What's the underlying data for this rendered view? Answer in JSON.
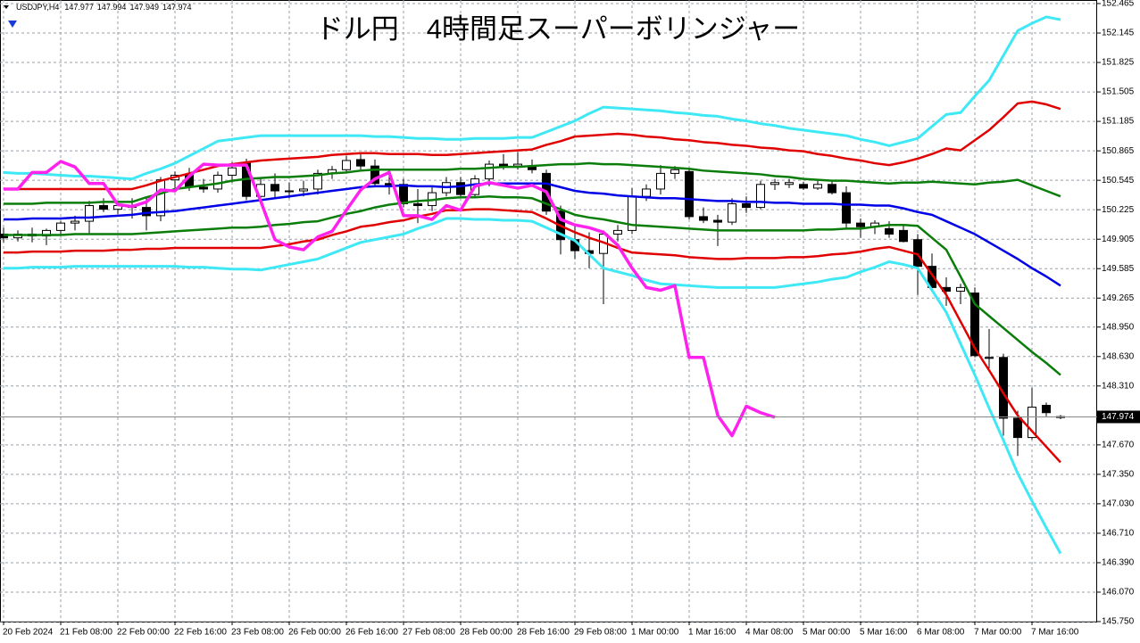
{
  "chart_data": {
    "type": "candlestick",
    "title": "ドル円　4時間足スーパーボリンジャー",
    "symbol": "USDJPY,H4",
    "categories": [
      "20 Feb 2024",
      null,
      null,
      null,
      "21 Feb 08:00",
      null,
      null,
      null,
      "22 Feb 00:00",
      null,
      null,
      null,
      "22 Feb 16:00",
      null,
      null,
      null,
      "23 Feb 08:00",
      null,
      null,
      null,
      "26 Feb 00:00",
      null,
      null,
      null,
      "26 Feb 16:00",
      null,
      null,
      null,
      "27 Feb 08:00",
      null,
      null,
      null,
      "28 Feb 00:00",
      null,
      null,
      null,
      "28 Feb 16:00",
      null,
      null,
      null,
      "29 Feb 08:00",
      null,
      null,
      null,
      "1 Mar 00:00",
      null,
      null,
      null,
      "1 Mar 16:00",
      null,
      null,
      null,
      "4 Mar 08:00",
      null,
      null,
      null,
      "5 Mar 00:00",
      null,
      null,
      null,
      "5 Mar 16:00",
      null,
      null,
      null,
      "6 Mar 08:00",
      null,
      null,
      null,
      "7 Mar 00:00",
      null,
      null,
      null,
      "7 Mar 16:00",
      null,
      null
    ],
    "open": [
      149.96,
      149.92,
      149.96,
      149.94,
      150.0,
      150.08,
      150.1,
      150.27,
      150.23,
      150.27,
      150.25,
      150.16,
      150.55,
      150.6,
      150.47,
      150.45,
      150.6,
      150.74,
      150.37,
      150.5,
      150.43,
      150.43,
      150.45,
      150.62,
      150.66,
      150.77,
      150.7,
      150.51,
      150.5,
      150.29,
      150.27,
      150.41,
      150.52,
      150.39,
      150.56,
      150.72,
      150.7,
      150.7,
      150.62,
      150.21,
      149.9,
      149.78,
      149.75,
      149.96,
      150.0,
      150.37,
      150.45,
      150.62,
      150.64,
      150.15,
      150.11,
      150.09,
      150.29,
      150.25,
      150.5,
      150.5,
      150.5,
      150.46,
      150.5,
      150.41,
      150.08,
      150.04,
      150.02,
      150.0,
      149.9,
      149.61,
      149.38,
      149.34,
      149.32,
      148.62,
      148.62,
      147.96,
      147.75,
      148.1,
      147.977
    ],
    "high": [
      150.03,
      150.0,
      150.03,
      150.02,
      150.1,
      150.16,
      150.32,
      150.35,
      150.31,
      150.35,
      150.37,
      150.58,
      150.64,
      150.68,
      150.56,
      150.64,
      150.74,
      150.78,
      150.58,
      150.62,
      150.52,
      150.54,
      150.66,
      150.7,
      150.81,
      150.83,
      150.77,
      150.66,
      150.56,
      150.45,
      150.47,
      150.58,
      150.58,
      150.6,
      150.76,
      150.83,
      150.85,
      150.77,
      150.66,
      150.27,
      150.06,
      149.98,
      150.0,
      150.06,
      150.46,
      150.5,
      150.71,
      150.7,
      150.68,
      150.25,
      150.17,
      150.35,
      150.37,
      150.54,
      150.56,
      150.56,
      150.53,
      150.54,
      150.54,
      150.48,
      150.13,
      150.11,
      150.1,
      150.06,
      149.96,
      149.75,
      149.49,
      149.42,
      149.38,
      148.93,
      148.66,
      148.04,
      148.29,
      148.13,
      147.994
    ],
    "low": [
      149.87,
      149.88,
      149.87,
      149.84,
      149.96,
      150.0,
      149.96,
      150.2,
      150.18,
      150.13,
      150.0,
      150.1,
      150.45,
      150.43,
      150.41,
      150.41,
      150.52,
      150.33,
      150.35,
      150.35,
      150.35,
      150.37,
      150.39,
      150.56,
      150.62,
      150.66,
      150.47,
      150.39,
      150.25,
      150.08,
      150.21,
      150.37,
      150.35,
      150.35,
      150.48,
      150.66,
      150.66,
      150.62,
      150.17,
      149.74,
      149.69,
      149.59,
      149.2,
      149.88,
      149.96,
      150.32,
      150.39,
      150.56,
      150.12,
      150.08,
      149.83,
      150.06,
      150.19,
      150.23,
      150.44,
      150.46,
      150.44,
      150.44,
      150.39,
      150.02,
      149.92,
      149.96,
      149.92,
      149.87,
      149.3,
      149.34,
      149.18,
      149.2,
      148.62,
      148.5,
      147.77,
      147.55,
      147.73,
      147.98,
      147.949
    ],
    "close": [
      149.92,
      149.96,
      149.94,
      150.0,
      150.08,
      150.1,
      150.27,
      150.23,
      150.27,
      150.25,
      150.16,
      150.55,
      150.6,
      150.47,
      150.45,
      150.6,
      150.68,
      150.37,
      150.5,
      150.43,
      150.43,
      150.45,
      150.62,
      150.66,
      150.76,
      150.7,
      150.51,
      150.48,
      150.29,
      150.27,
      150.41,
      150.52,
      150.39,
      150.56,
      150.72,
      150.7,
      150.72,
      150.66,
      150.21,
      149.9,
      149.78,
      149.75,
      149.96,
      150.0,
      150.37,
      150.45,
      150.62,
      150.66,
      150.15,
      150.11,
      150.09,
      150.29,
      150.25,
      150.5,
      150.52,
      150.52,
      150.46,
      150.5,
      150.41,
      150.08,
      150.04,
      150.08,
      149.96,
      149.88,
      149.61,
      149.38,
      149.34,
      149.38,
      148.64,
      148.62,
      147.96,
      147.75,
      148.08,
      148.02,
      147.974
    ],
    "up_color": "#ffffff",
    "down_color": "#000000",
    "series": [
      {
        "color": "#3ee8f5",
        "width": 3,
        "values": [
          150.63,
          150.62,
          150.62,
          150.61,
          150.6,
          150.59,
          150.59,
          150.58,
          150.57,
          150.56,
          150.62,
          150.67,
          150.73,
          150.81,
          150.89,
          150.97,
          150.99,
          151.01,
          151.03,
          151.03,
          151.03,
          151.03,
          151.03,
          151.03,
          151.03,
          151.03,
          151.02,
          151.02,
          151.01,
          151.0,
          151.0,
          150.99,
          150.99,
          151.0,
          151.0,
          151.0,
          151.01,
          151.01,
          151.07,
          151.13,
          151.19,
          151.27,
          151.34,
          151.33,
          151.32,
          151.31,
          151.3,
          151.28,
          151.27,
          151.25,
          151.24,
          151.21,
          151.19,
          151.16,
          151.14,
          151.11,
          151.09,
          151.07,
          151.05,
          151.03,
          150.99,
          150.96,
          150.92,
          150.96,
          151.0,
          151.13,
          151.26,
          151.28,
          151.46,
          151.63,
          151.9,
          152.17,
          152.25,
          152.32,
          152.29
        ]
      },
      {
        "color": "#3ee8f5",
        "width": 3,
        "values": [
          149.59,
          149.59,
          149.6,
          149.6,
          149.6,
          149.61,
          149.61,
          149.61,
          149.61,
          149.61,
          149.61,
          149.61,
          149.61,
          149.6,
          149.6,
          149.59,
          149.58,
          149.58,
          149.57,
          149.6,
          149.63,
          149.66,
          149.69,
          149.75,
          149.81,
          149.87,
          149.9,
          149.93,
          149.96,
          150.02,
          150.07,
          150.13,
          150.13,
          150.12,
          150.12,
          150.11,
          150.11,
          150.1,
          150.03,
          149.96,
          149.89,
          149.74,
          149.59,
          149.55,
          149.51,
          149.46,
          149.42,
          149.41,
          149.4,
          149.39,
          149.38,
          149.38,
          149.38,
          149.38,
          149.38,
          149.4,
          149.42,
          149.44,
          149.47,
          149.49,
          149.55,
          149.6,
          149.66,
          149.63,
          149.59,
          149.35,
          149.11,
          148.77,
          148.43,
          148.07,
          147.72,
          147.36,
          147.06,
          146.77,
          146.49
        ]
      },
      {
        "color": "#e00000",
        "width": 2.5,
        "values": [
          150.45,
          150.45,
          150.45,
          150.45,
          150.45,
          150.45,
          150.45,
          150.45,
          150.45,
          150.45,
          150.49,
          150.54,
          150.58,
          150.62,
          150.66,
          150.7,
          150.72,
          150.74,
          150.76,
          150.77,
          150.78,
          150.79,
          150.8,
          150.82,
          150.83,
          150.84,
          150.84,
          150.83,
          150.83,
          150.83,
          150.82,
          150.82,
          150.83,
          150.84,
          150.85,
          150.86,
          150.87,
          150.88,
          150.93,
          150.97,
          151.02,
          151.03,
          151.04,
          151.05,
          151.04,
          151.02,
          151.01,
          150.99,
          150.98,
          150.96,
          150.95,
          150.93,
          150.92,
          150.9,
          150.89,
          150.87,
          150.86,
          150.83,
          150.81,
          150.78,
          150.76,
          150.73,
          150.71,
          150.74,
          150.78,
          150.83,
          150.89,
          150.87,
          150.98,
          151.09,
          151.23,
          151.38,
          151.4,
          151.37,
          151.32
        ]
      },
      {
        "color": "#e00000",
        "width": 2.5,
        "values": [
          149.76,
          149.76,
          149.77,
          149.77,
          149.77,
          149.78,
          149.78,
          149.78,
          149.79,
          149.79,
          149.8,
          149.8,
          149.81,
          149.81,
          149.81,
          149.81,
          149.81,
          149.81,
          149.81,
          149.83,
          149.85,
          149.88,
          149.9,
          149.95,
          149.99,
          150.04,
          150.06,
          150.09,
          150.11,
          150.15,
          150.18,
          150.22,
          150.22,
          150.23,
          150.23,
          150.22,
          150.21,
          150.2,
          150.13,
          150.05,
          149.98,
          149.92,
          149.87,
          149.81,
          149.76,
          149.75,
          149.74,
          149.73,
          149.71,
          149.7,
          149.69,
          149.69,
          149.7,
          149.7,
          149.7,
          149.71,
          149.71,
          149.72,
          149.74,
          149.75,
          149.77,
          149.8,
          149.82,
          149.78,
          149.74,
          149.52,
          149.3,
          149.01,
          148.72,
          148.48,
          148.23,
          147.99,
          147.82,
          147.65,
          147.48
        ]
      },
      {
        "color": "#0a7d0a",
        "width": 2.5,
        "values": [
          150.29,
          150.29,
          150.29,
          150.3,
          150.3,
          150.3,
          150.3,
          150.31,
          150.31,
          150.31,
          150.36,
          150.4,
          150.45,
          150.47,
          150.49,
          150.51,
          150.54,
          150.56,
          150.57,
          150.58,
          150.58,
          150.59,
          150.6,
          150.62,
          150.63,
          150.65,
          150.66,
          150.66,
          150.66,
          150.66,
          150.66,
          150.66,
          150.67,
          150.67,
          150.68,
          150.69,
          150.69,
          150.7,
          150.71,
          150.72,
          150.72,
          150.73,
          150.72,
          150.72,
          150.71,
          150.7,
          150.69,
          150.68,
          150.67,
          150.65,
          150.64,
          150.63,
          150.62,
          150.61,
          150.59,
          150.58,
          150.56,
          150.55,
          150.54,
          150.54,
          150.53,
          150.52,
          150.51,
          150.52,
          150.52,
          150.53,
          150.52,
          150.51,
          150.5,
          150.52,
          150.53,
          150.55,
          150.49,
          150.43,
          150.37
        ]
      },
      {
        "color": "#0a7d0a",
        "width": 2.5,
        "values": [
          149.95,
          149.95,
          149.95,
          149.95,
          149.95,
          149.96,
          149.96,
          149.96,
          149.96,
          149.96,
          149.97,
          149.98,
          149.99,
          150.0,
          150.01,
          150.02,
          150.03,
          150.03,
          150.04,
          150.06,
          150.07,
          150.09,
          150.1,
          150.14,
          150.18,
          150.21,
          150.25,
          150.28,
          150.3,
          150.32,
          150.33,
          150.35,
          150.36,
          150.36,
          150.37,
          150.36,
          150.36,
          150.35,
          150.29,
          150.23,
          150.17,
          150.14,
          150.12,
          150.09,
          150.06,
          150.05,
          150.04,
          150.03,
          150.02,
          150.01,
          150.0,
          150.0,
          150.0,
          150.0,
          150.0,
          150.0,
          150.0,
          150.01,
          150.01,
          150.02,
          150.02,
          150.04,
          150.06,
          150.06,
          150.05,
          149.92,
          149.79,
          149.5,
          149.2,
          149.07,
          148.94,
          148.81,
          148.68,
          148.56,
          148.43
        ]
      },
      {
        "color": "#0000e6",
        "width": 2.5,
        "values": [
          150.12,
          150.12,
          150.13,
          150.13,
          150.13,
          150.14,
          150.14,
          150.15,
          150.16,
          150.17,
          150.19,
          150.2,
          150.21,
          150.23,
          150.25,
          150.27,
          150.29,
          150.31,
          150.33,
          150.35,
          150.37,
          150.39,
          150.41,
          150.43,
          150.45,
          150.47,
          150.48,
          150.48,
          150.49,
          150.48,
          150.48,
          150.47,
          150.48,
          150.5,
          150.51,
          150.51,
          150.51,
          150.51,
          150.51,
          150.47,
          150.43,
          150.41,
          150.4,
          150.38,
          150.37,
          150.36,
          150.35,
          150.35,
          150.34,
          150.33,
          150.32,
          150.32,
          150.31,
          150.31,
          150.3,
          150.3,
          150.29,
          150.29,
          150.29,
          150.28,
          150.28,
          150.27,
          150.27,
          150.24,
          150.2,
          150.17,
          150.1,
          150.03,
          149.96,
          149.87,
          149.78,
          149.69,
          149.59,
          149.5,
          149.4
        ]
      },
      {
        "color": "#ff22ee",
        "width": 3.5,
        "values": [
          150.45,
          150.45,
          150.63,
          150.63,
          150.75,
          150.69,
          150.51,
          150.51,
          150.28,
          150.26,
          150.31,
          150.44,
          150.43,
          150.59,
          150.72,
          150.71,
          150.71,
          150.71,
          150.32,
          149.9,
          149.82,
          149.79,
          149.93,
          149.99,
          150.22,
          150.44,
          150.56,
          150.63,
          150.16,
          150.16,
          150.12,
          150.27,
          150.22,
          150.48,
          150.52,
          150.49,
          150.46,
          150.49,
          150.42,
          150.12,
          150.06,
          150.03,
          149.98,
          149.84,
          149.59,
          149.38,
          149.35,
          149.4,
          148.62,
          148.62,
          147.99,
          147.77,
          148.09,
          148.02,
          147.97,
          null,
          null,
          null,
          null,
          null,
          null,
          null,
          null,
          null,
          null,
          null,
          null,
          null,
          null,
          null,
          null,
          null,
          null,
          null,
          null
        ]
      }
    ],
    "ylim": [
      145.75,
      152.465
    ],
    "yticks": [
      152.465,
      152.145,
      151.825,
      151.505,
      151.185,
      150.865,
      150.545,
      150.225,
      149.905,
      149.585,
      149.265,
      {
        "value": 148.95,
        "label": "148.950"
      },
      {
        "value": 148.63,
        "label": "148.630"
      },
      {
        "value": 148.31,
        "label": "148.310"
      },
      {
        "value": 147.67,
        "label": "147.670"
      },
      {
        "value": 147.35,
        "label": "147.350"
      },
      {
        "value": 147.03,
        "label": "147.030"
      },
      {
        "value": 146.71,
        "label": "146.710"
      },
      {
        "value": 146.39,
        "label": "146.390"
      },
      {
        "value": 146.07,
        "label": "146.070"
      },
      {
        "value": 145.75,
        "label": "145.750"
      }
    ],
    "grid": true
  }
}
